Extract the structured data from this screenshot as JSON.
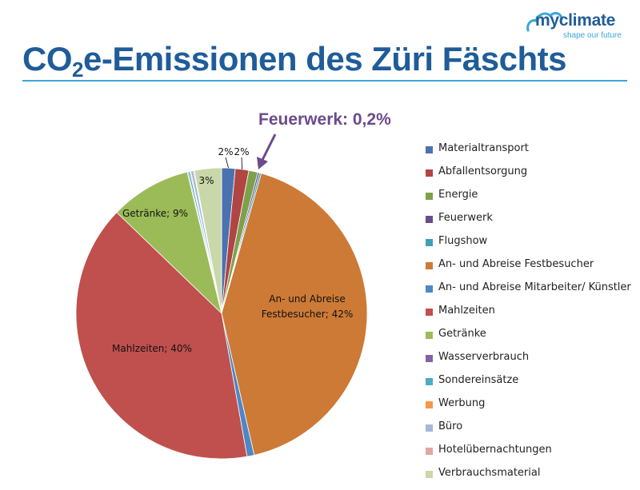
{
  "title_main": "CO",
  "title_sub": "2",
  "title_rest": "e-Emissionen des Züri Fäschts",
  "logo": {
    "name": "myclimate",
    "tagline": "shape our future"
  },
  "callout": "Feuerwerk: 0,2%",
  "chart_data": {
    "type": "pie",
    "start": "12 o'clock, clockwise",
    "slices": [
      {
        "name": "Materialtransport",
        "value": 1.5,
        "color": "#4a72b0",
        "label": "2%"
      },
      {
        "name": "Abfallentsorgung",
        "value": 1.5,
        "color": "#b04543",
        "label": "2%"
      },
      {
        "name": "Energie",
        "value": 1.0,
        "color": "#7fa04a",
        "label": ""
      },
      {
        "name": "Feuerwerk",
        "value": 0.2,
        "color": "#6a4b8c",
        "label": ""
      },
      {
        "name": "Flugshow",
        "value": 0.2,
        "color": "#3d9fb5",
        "label": ""
      },
      {
        "name": "An- und Abreise Festbesucher",
        "value": 42,
        "color": "#cc7a36",
        "label": "An- und Abreise\nFestbesucher; 42%"
      },
      {
        "name": "An- und Abreise Mitarbeiter/ Künstler",
        "value": 0.8,
        "color": "#4f86c6",
        "label": ""
      },
      {
        "name": "Mahlzeiten",
        "value": 40,
        "color": "#c0504d",
        "label": "Mahlzeiten; 40%"
      },
      {
        "name": "Getränke",
        "value": 9,
        "color": "#9bbb59",
        "label": "Getränke; 9%"
      },
      {
        "name": "Wasserverbrauch",
        "value": 0.1,
        "color": "#8064a2",
        "label": ""
      },
      {
        "name": "Sondereinsätze",
        "value": 0.2,
        "color": "#4bacc6",
        "label": ""
      },
      {
        "name": "Werbung",
        "value": 0.1,
        "color": "#f79646",
        "label": ""
      },
      {
        "name": "Büro",
        "value": 0.3,
        "color": "#a5b8d8",
        "label": ""
      },
      {
        "name": "Hotelübernachtungen",
        "value": 0.1,
        "color": "#e2a6a4",
        "label": ""
      },
      {
        "name": "Verbrauchsmaterial",
        "value": 3,
        "color": "#c9d8a8",
        "label": "3%"
      }
    ],
    "legend_position": "right"
  }
}
